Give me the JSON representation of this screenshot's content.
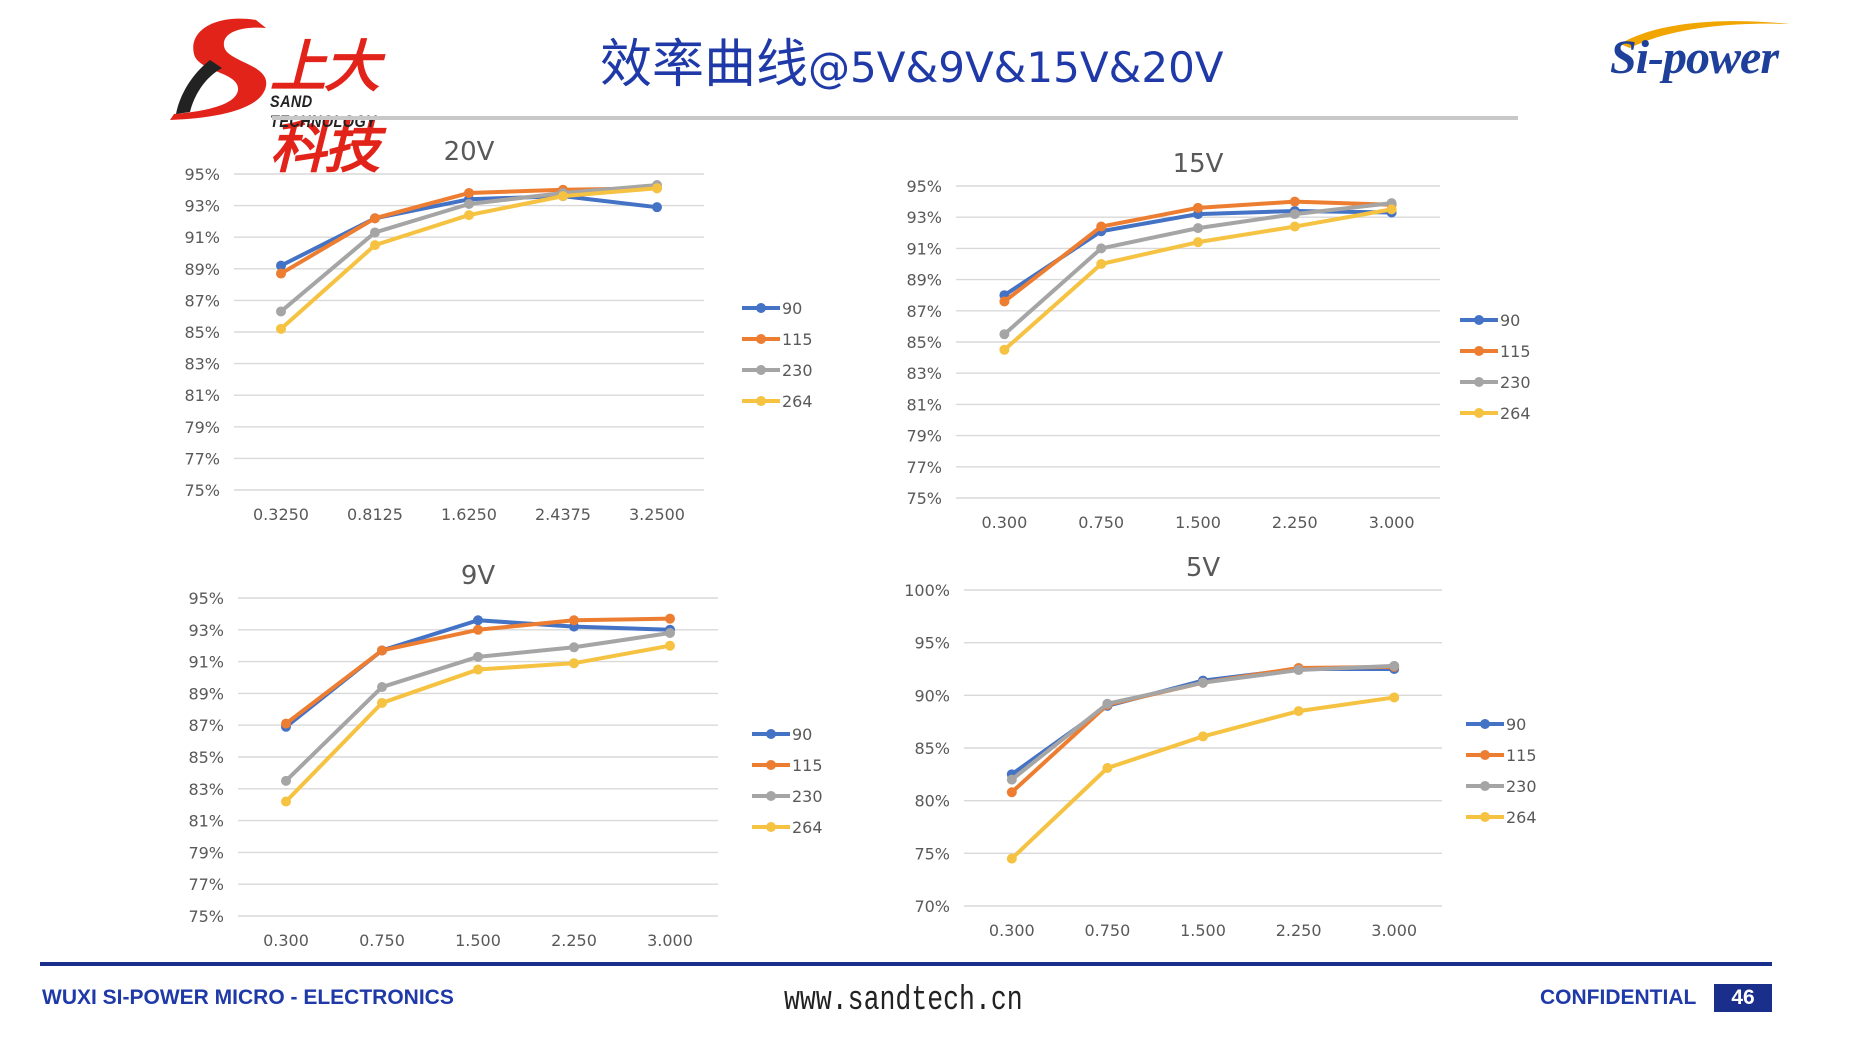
{
  "header": {
    "title_cn": "效率曲线",
    "title_suffix": "@5V&9V&15V&20V",
    "logo_left_cn": "上大科技",
    "logo_left_en": "SAND TECHNOLOGY",
    "logo_right": "Si-power"
  },
  "footer": {
    "company": "WUXI SI-POWER MICRO - ELECTRONICS",
    "website": "www.sandtech.cn",
    "confidential": "CONFIDENTIAL",
    "page": "46"
  },
  "colors": {
    "90": "#4472c4",
    "115": "#ed7d31",
    "230": "#a5a5a5",
    "264": "#f5c242"
  },
  "chart_data": [
    {
      "id": "20V",
      "type": "line",
      "title": "20V",
      "categories": [
        "0.3250",
        "0.8125",
        "1.6250",
        "2.4375",
        "3.2500"
      ],
      "y_ticks": [
        "95%",
        "93%",
        "91%",
        "89%",
        "87%",
        "85%",
        "83%",
        "81%",
        "79%",
        "77%",
        "75%"
      ],
      "ylim": [
        75,
        95
      ],
      "series": [
        {
          "name": "90",
          "values": [
            89.2,
            92.2,
            93.4,
            93.6,
            92.9
          ]
        },
        {
          "name": "115",
          "values": [
            88.7,
            92.2,
            93.8,
            94.0,
            94.1
          ]
        },
        {
          "name": "230",
          "values": [
            86.3,
            91.3,
            93.1,
            93.8,
            94.3
          ]
        },
        {
          "name": "264",
          "values": [
            85.2,
            90.5,
            92.4,
            93.6,
            94.1
          ]
        }
      ]
    },
    {
      "id": "15V",
      "type": "line",
      "title": "15V",
      "categories": [
        "0.300",
        "0.750",
        "1.500",
        "2.250",
        "3.000"
      ],
      "y_ticks": [
        "95%",
        "93%",
        "91%",
        "89%",
        "87%",
        "85%",
        "83%",
        "81%",
        "79%",
        "77%",
        "75%"
      ],
      "ylim": [
        75,
        95
      ],
      "series": [
        {
          "name": "90",
          "values": [
            88.0,
            92.1,
            93.2,
            93.4,
            93.3
          ]
        },
        {
          "name": "115",
          "values": [
            87.6,
            92.4,
            93.6,
            94.0,
            93.8
          ]
        },
        {
          "name": "230",
          "values": [
            85.5,
            91.0,
            92.3,
            93.2,
            93.9
          ]
        },
        {
          "name": "264",
          "values": [
            84.5,
            90.0,
            91.4,
            92.4,
            93.5
          ]
        }
      ]
    },
    {
      "id": "9V",
      "type": "line",
      "title": "9V",
      "categories": [
        "0.300",
        "0.750",
        "1.500",
        "2.250",
        "3.000"
      ],
      "y_ticks": [
        "95%",
        "93%",
        "91%",
        "89%",
        "87%",
        "85%",
        "83%",
        "81%",
        "79%",
        "77%",
        "75%"
      ],
      "ylim": [
        75,
        95
      ],
      "series": [
        {
          "name": "90",
          "values": [
            86.9,
            91.7,
            93.6,
            93.2,
            93.0
          ]
        },
        {
          "name": "115",
          "values": [
            87.1,
            91.7,
            93.0,
            93.6,
            93.7
          ]
        },
        {
          "name": "230",
          "values": [
            83.5,
            89.4,
            91.3,
            91.9,
            92.8
          ]
        },
        {
          "name": "264",
          "values": [
            82.2,
            88.4,
            90.5,
            90.9,
            92.0
          ]
        }
      ]
    },
    {
      "id": "5V",
      "type": "line",
      "title": "5V",
      "categories": [
        "0.300",
        "0.750",
        "1.500",
        "2.250",
        "3.000"
      ],
      "y_ticks": [
        "100%",
        "95%",
        "90%",
        "85%",
        "80%",
        "75%",
        "70%"
      ],
      "ylim": [
        70,
        100
      ],
      "series": [
        {
          "name": "90",
          "values": [
            82.5,
            89.0,
            91.4,
            92.5,
            92.5
          ]
        },
        {
          "name": "115",
          "values": [
            80.8,
            89.1,
            91.2,
            92.6,
            92.7
          ]
        },
        {
          "name": "230",
          "values": [
            82.0,
            89.2,
            91.2,
            92.4,
            92.8
          ]
        },
        {
          "name": "264",
          "values": [
            74.5,
            83.1,
            86.1,
            88.5,
            89.8
          ]
        }
      ]
    }
  ]
}
